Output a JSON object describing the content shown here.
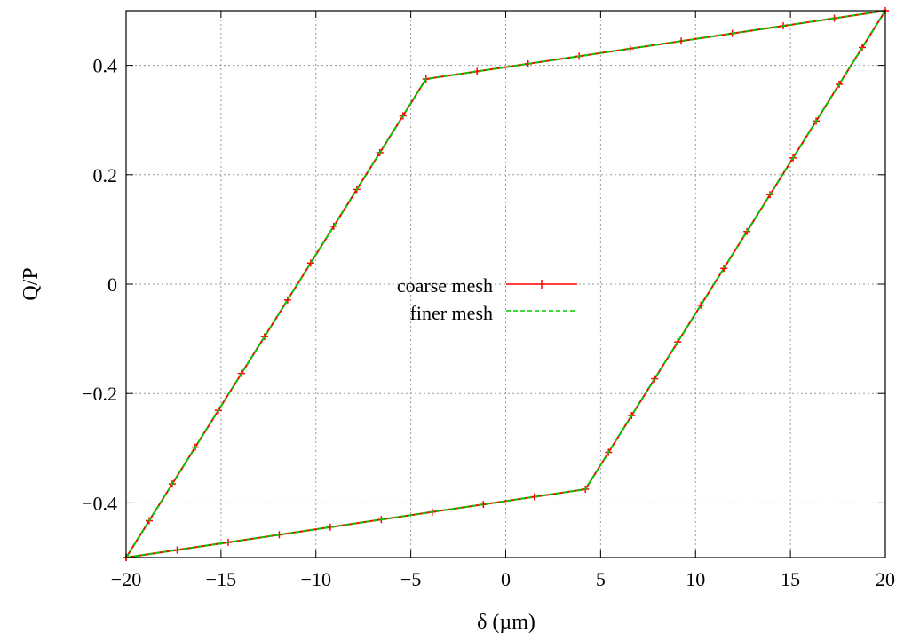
{
  "chart_data": {
    "type": "line",
    "title": "",
    "xlabel": "δ (µm)",
    "ylabel": "Q/P",
    "xlim": [
      -20,
      20
    ],
    "ylim": [
      -0.5,
      0.5
    ],
    "xticks": [
      -20,
      -15,
      -10,
      -5,
      0,
      5,
      10,
      15,
      20
    ],
    "xtick_labels": [
      "−20",
      "−15",
      "−10",
      "−5",
      "0",
      "5",
      "10",
      "15",
      "20"
    ],
    "yticks": [
      -0.4,
      -0.2,
      0,
      0.2,
      0.4
    ],
    "ytick_labels": [
      "−0.4",
      "−0.2",
      "0",
      "0.2",
      "0.4"
    ],
    "grid": true,
    "legend_position": "center",
    "series": [
      {
        "name": "coarse mesh",
        "color": "#ff0000",
        "style": "line+cross-markers",
        "x": [
          -20,
          -4.2,
          20,
          4.2,
          -20
        ],
        "y": [
          -0.5,
          0.375,
          0.5,
          -0.375,
          -0.5
        ]
      },
      {
        "name": "finer mesh",
        "color": "#00cc00",
        "style": "dashed",
        "x": [
          -20,
          -4.2,
          20,
          4.2,
          -20
        ],
        "y": [
          -0.5,
          0.375,
          0.5,
          -0.375,
          -0.5
        ]
      }
    ]
  }
}
